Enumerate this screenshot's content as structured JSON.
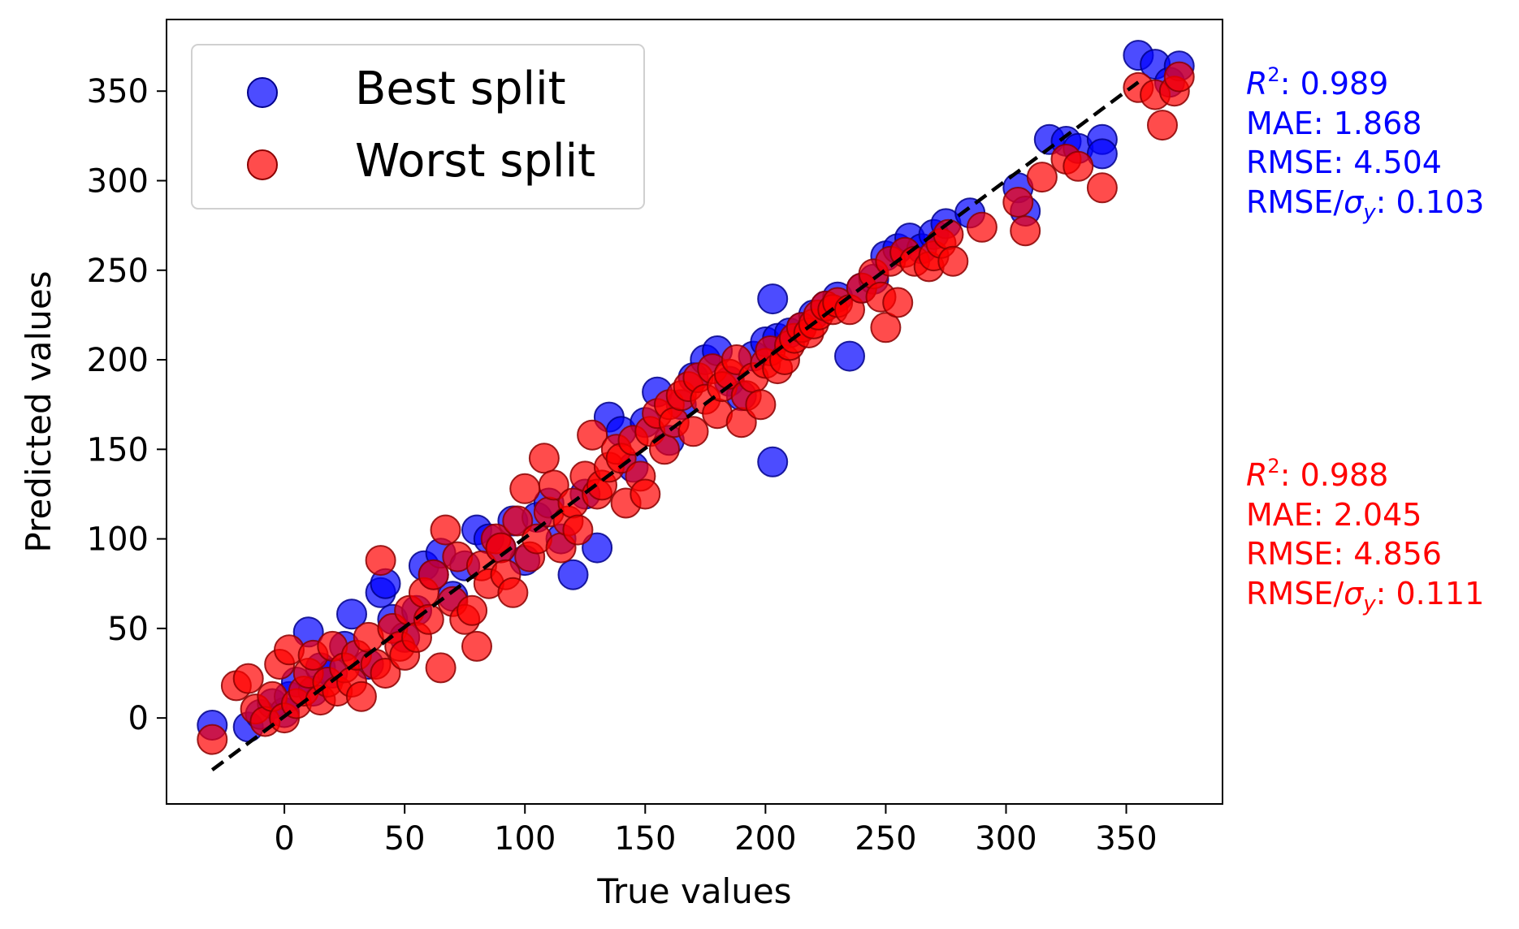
{
  "chart_data": {
    "type": "scatter",
    "title": "",
    "xlabel": "True values",
    "ylabel": "Predicted values",
    "xlim": [
      -49,
      390
    ],
    "ylim": [
      -48,
      390
    ],
    "xticks": [
      0,
      50,
      100,
      150,
      200,
      250,
      300,
      350
    ],
    "yticks": [
      0,
      50,
      100,
      150,
      200,
      250,
      300,
      350
    ],
    "grid": false,
    "legend_position": "top-left",
    "reference_line": {
      "style": "dashed",
      "color": "#000000",
      "from": [
        -30,
        -29
      ],
      "to": [
        355,
        355
      ]
    },
    "series": [
      {
        "name": "Best split",
        "color": "#0000ff",
        "edge_color": "#00008b",
        "opacity": 0.7,
        "points": [
          [
            -30,
            -4
          ],
          [
            -15,
            -5
          ],
          [
            -10,
            2
          ],
          [
            -5,
            8
          ],
          [
            0,
            3
          ],
          [
            2,
            12
          ],
          [
            5,
            20
          ],
          [
            10,
            48
          ],
          [
            12,
            15
          ],
          [
            15,
            28
          ],
          [
            20,
            25
          ],
          [
            25,
            40
          ],
          [
            28,
            58
          ],
          [
            35,
            30
          ],
          [
            40,
            70
          ],
          [
            42,
            75
          ],
          [
            45,
            55
          ],
          [
            50,
            45
          ],
          [
            55,
            60
          ],
          [
            58,
            85
          ],
          [
            62,
            80
          ],
          [
            65,
            92
          ],
          [
            70,
            68
          ],
          [
            75,
            85
          ],
          [
            80,
            105
          ],
          [
            85,
            100
          ],
          [
            90,
            95
          ],
          [
            95,
            110
          ],
          [
            100,
            88
          ],
          [
            105,
            112
          ],
          [
            110,
            120
          ],
          [
            115,
            100
          ],
          [
            120,
            80
          ],
          [
            125,
            125
          ],
          [
            130,
            95
          ],
          [
            135,
            168
          ],
          [
            140,
            160
          ],
          [
            145,
            140
          ],
          [
            150,
            165
          ],
          [
            155,
            182
          ],
          [
            160,
            155
          ],
          [
            165,
            175
          ],
          [
            170,
            190
          ],
          [
            175,
            200
          ],
          [
            180,
            205
          ],
          [
            185,
            188
          ],
          [
            190,
            180
          ],
          [
            195,
            202
          ],
          [
            200,
            210
          ],
          [
            203,
            234
          ],
          [
            203,
            143
          ],
          [
            205,
            212
          ],
          [
            210,
            215
          ],
          [
            215,
            218
          ],
          [
            220,
            225
          ],
          [
            225,
            230
          ],
          [
            230,
            235
          ],
          [
            235,
            202
          ],
          [
            240,
            240
          ],
          [
            245,
            245
          ],
          [
            250,
            258
          ],
          [
            255,
            262
          ],
          [
            260,
            268
          ],
          [
            265,
            262
          ],
          [
            270,
            270
          ],
          [
            275,
            276
          ],
          [
            285,
            282
          ],
          [
            305,
            296
          ],
          [
            308,
            283
          ],
          [
            318,
            323
          ],
          [
            325,
            322
          ],
          [
            330,
            318
          ],
          [
            340,
            323
          ],
          [
            340,
            315
          ],
          [
            355,
            370
          ],
          [
            362,
            365
          ],
          [
            368,
            355
          ],
          [
            372,
            364
          ]
        ]
      },
      {
        "name": "Worst split",
        "color": "#ff0000",
        "edge_color": "#8b0000",
        "opacity": 0.7,
        "points": [
          [
            -30,
            -12
          ],
          [
            -20,
            18
          ],
          [
            -15,
            22
          ],
          [
            -12,
            5
          ],
          [
            -8,
            -2
          ],
          [
            -5,
            12
          ],
          [
            -2,
            30
          ],
          [
            0,
            0
          ],
          [
            2,
            38
          ],
          [
            5,
            8
          ],
          [
            8,
            15
          ],
          [
            10,
            25
          ],
          [
            12,
            35
          ],
          [
            15,
            10
          ],
          [
            18,
            20
          ],
          [
            20,
            40
          ],
          [
            22,
            15
          ],
          [
            25,
            28
          ],
          [
            28,
            20
          ],
          [
            30,
            35
          ],
          [
            32,
            12
          ],
          [
            35,
            45
          ],
          [
            38,
            30
          ],
          [
            40,
            88
          ],
          [
            42,
            25
          ],
          [
            45,
            50
          ],
          [
            48,
            40
          ],
          [
            50,
            35
          ],
          [
            52,
            60
          ],
          [
            55,
            45
          ],
          [
            58,
            70
          ],
          [
            60,
            55
          ],
          [
            62,
            80
          ],
          [
            65,
            28
          ],
          [
            67,
            105
          ],
          [
            70,
            65
          ],
          [
            72,
            90
          ],
          [
            75,
            55
          ],
          [
            78,
            60
          ],
          [
            80,
            40
          ],
          [
            82,
            85
          ],
          [
            85,
            75
          ],
          [
            88,
            100
          ],
          [
            90,
            95
          ],
          [
            92,
            80
          ],
          [
            95,
            70
          ],
          [
            97,
            110
          ],
          [
            100,
            128
          ],
          [
            102,
            90
          ],
          [
            105,
            100
          ],
          [
            108,
            145
          ],
          [
            110,
            115
          ],
          [
            112,
            130
          ],
          [
            115,
            95
          ],
          [
            118,
            110
          ],
          [
            120,
            120
          ],
          [
            122,
            105
          ],
          [
            125,
            135
          ],
          [
            128,
            158
          ],
          [
            130,
            125
          ],
          [
            132,
            130
          ],
          [
            135,
            140
          ],
          [
            138,
            150
          ],
          [
            140,
            145
          ],
          [
            142,
            120
          ],
          [
            145,
            155
          ],
          [
            148,
            135
          ],
          [
            150,
            125
          ],
          [
            152,
            160
          ],
          [
            155,
            170
          ],
          [
            158,
            150
          ],
          [
            160,
            175
          ],
          [
            162,
            165
          ],
          [
            165,
            180
          ],
          [
            168,
            185
          ],
          [
            170,
            160
          ],
          [
            172,
            190
          ],
          [
            175,
            178
          ],
          [
            178,
            195
          ],
          [
            180,
            170
          ],
          [
            182,
            185
          ],
          [
            185,
            192
          ],
          [
            188,
            200
          ],
          [
            190,
            165
          ],
          [
            192,
            180
          ],
          [
            195,
            190
          ],
          [
            198,
            175
          ],
          [
            200,
            198
          ],
          [
            202,
            205
          ],
          [
            205,
            195
          ],
          [
            208,
            200
          ],
          [
            210,
            208
          ],
          [
            212,
            212
          ],
          [
            215,
            218
          ],
          [
            218,
            215
          ],
          [
            220,
            220
          ],
          [
            222,
            225
          ],
          [
            225,
            230
          ],
          [
            228,
            228
          ],
          [
            230,
            232
          ],
          [
            235,
            228
          ],
          [
            240,
            240
          ],
          [
            245,
            248
          ],
          [
            248,
            235
          ],
          [
            250,
            218
          ],
          [
            252,
            255
          ],
          [
            255,
            232
          ],
          [
            258,
            260
          ],
          [
            262,
            255
          ],
          [
            268,
            252
          ],
          [
            270,
            258
          ],
          [
            273,
            265
          ],
          [
            276,
            270
          ],
          [
            278,
            255
          ],
          [
            290,
            274
          ],
          [
            305,
            288
          ],
          [
            308,
            272
          ],
          [
            315,
            302
          ],
          [
            325,
            312
          ],
          [
            330,
            308
          ],
          [
            340,
            296
          ],
          [
            355,
            352
          ],
          [
            362,
            348
          ],
          [
            365,
            331
          ],
          [
            370,
            350
          ],
          [
            372,
            358
          ]
        ]
      }
    ]
  },
  "annotations": [
    {
      "color": "#0000ff",
      "r2_label": "R",
      "r2_exp": "2",
      "r2_value": ": 0.989",
      "mae": "MAE: 1.868",
      "rmse": "RMSE: 4.504",
      "rmse_sigma_prefix": "RMSE/",
      "sigma": "σ",
      "sigma_sub": "y",
      "rmse_sigma_value": ": 0.103"
    },
    {
      "color": "#ff0000",
      "r2_label": "R",
      "r2_exp": "2",
      "r2_value": ": 0.988",
      "mae": "MAE: 2.045",
      "rmse": "RMSE: 4.856",
      "rmse_sigma_prefix": "RMSE/",
      "sigma": "σ",
      "sigma_sub": "y",
      "rmse_sigma_value": ": 0.111"
    }
  ]
}
